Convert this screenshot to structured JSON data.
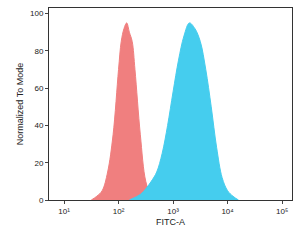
{
  "chart_data": {
    "type": "area",
    "x_label": "FITC-A",
    "y_label": "Normalized To Mode",
    "log": "x",
    "grid": false,
    "xlim": [
      5.3,
      152000
    ],
    "xticks": [
      {
        "value": 10,
        "label": "10¹"
      },
      {
        "value": 100,
        "label": "10²"
      },
      {
        "value": 1000,
        "label": "10³"
      },
      {
        "value": 10000,
        "label": "10⁴"
      },
      {
        "value": 100000,
        "label": "10⁵"
      }
    ],
    "ylim": [
      0,
      103
    ],
    "yticks": [
      0,
      20,
      40,
      60,
      80,
      100
    ],
    "series": [
      {
        "color": "#f07f7f",
        "x": [
          31.6,
          39.8,
          50.1,
          63.1,
          79.4,
          100,
          112,
          126,
          141,
          158,
          178,
          200,
          251,
          316,
          398,
          501
        ],
        "values": [
          0,
          2,
          5,
          15,
          35,
          70,
          85,
          92,
          95,
          90,
          85,
          70,
          35,
          10,
          2,
          0
        ]
      },
      {
        "color": "#45cdee",
        "x": [
          158,
          251,
          316,
          398,
          501,
          631,
          794,
          1000,
          1259,
          1585,
          1995,
          2512,
          3162,
          3981,
          5012,
          6310,
          7943,
          10000,
          12589,
          15849
        ],
        "values": [
          0,
          3,
          6,
          10,
          15,
          25,
          40,
          58,
          75,
          88,
          95,
          92,
          85,
          70,
          50,
          28,
          12,
          5,
          2,
          0
        ]
      }
    ]
  }
}
